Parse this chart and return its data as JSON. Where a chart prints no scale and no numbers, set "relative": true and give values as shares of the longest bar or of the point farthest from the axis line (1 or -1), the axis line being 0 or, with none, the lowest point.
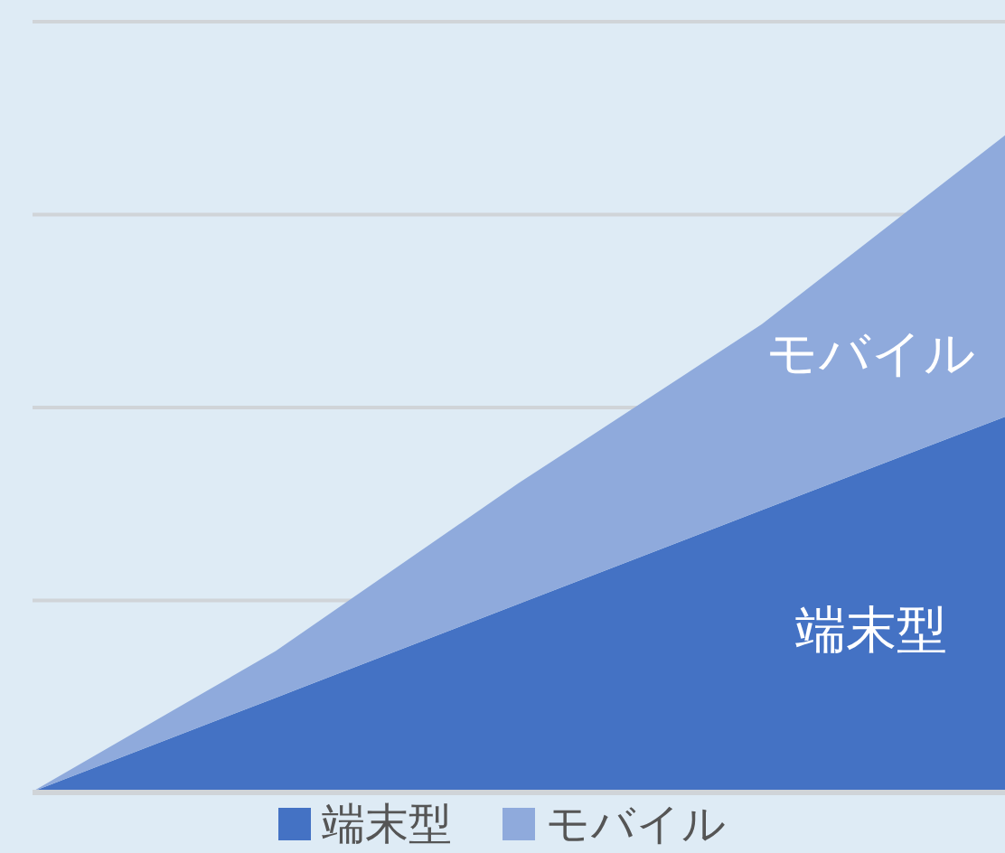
{
  "chart_data": {
    "type": "area",
    "stacked": true,
    "relative": true,
    "categories": [
      null,
      null,
      null,
      null,
      null
    ],
    "series": [
      {
        "name": "端末型",
        "color": "#4472c4",
        "values": [
          0,
          0.143,
          0.286,
          0.429,
          0.571
        ]
      },
      {
        "name": "モバイル",
        "color": "#8faadc",
        "values": [
          0,
          0.071,
          0.184,
          0.283,
          0.429
        ]
      }
    ],
    "grid": "y",
    "legend": "bottom"
  }
}
